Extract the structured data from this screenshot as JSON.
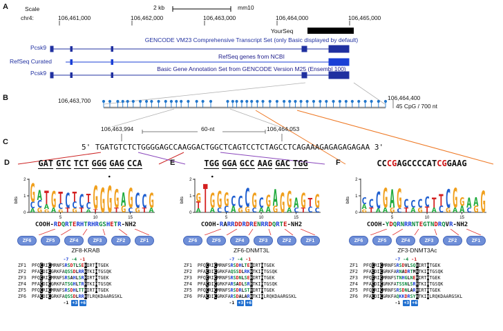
{
  "colors": {
    "track_blue": "#2030a0",
    "cpg_blue": "#2277cc",
    "map_red": "#cc2222",
    "map_purple": "#8844bb",
    "map_orange": "#ee7722"
  },
  "panelA": {
    "label": "A",
    "scale_label": "Scale",
    "scale_value": "2 kb",
    "genome": "mm10",
    "chrom": "chr4:",
    "coords": [
      "106,461,000",
      "106,462,000",
      "106,463,000",
      "106,464,000",
      "106,465,000"
    ],
    "tracks": {
      "yourseq": "YourSeq",
      "gencode_title": "GENCODE VM23 Comprehensive Transcript Set (only Basic displayed by default)",
      "gene_left": "Pcsk9",
      "refseq_left": "RefSeq Curated",
      "refseq_title": "RefSeq genes from NCBI",
      "m25_title": "Basic Gene Annotation Set from GENCODE Version M25 (Ensembl 100)",
      "gene_left2": "Pcsk9"
    }
  },
  "panelB": {
    "label": "B",
    "start": "106,463,700",
    "end": "106,464,400",
    "cpg_label": "45 CpG / 700 nt",
    "cpg_positions": [
      0.0,
      0.022,
      0.05,
      0.068,
      0.085,
      0.105,
      0.13,
      0.152,
      0.17,
      0.195,
      0.22,
      0.24,
      0.258,
      0.275,
      0.3,
      0.33,
      0.352,
      0.38,
      0.44,
      0.458,
      0.472,
      0.49,
      0.508,
      0.525,
      0.545,
      0.565,
      0.59,
      0.615,
      0.64,
      0.66,
      0.68,
      0.7,
      0.722,
      0.745,
      0.768,
      0.79,
      0.815,
      0.838,
      0.86,
      0.882,
      0.905,
      0.928,
      0.95,
      0.975,
      1.0
    ]
  },
  "zoom": {
    "start": "106,463,994",
    "mid": "60-nt",
    "end": "106,464,053"
  },
  "panelC": {
    "label": "C",
    "five": "5'",
    "seq": "TGATGTCTCTGGGGAGCCAAGGACTGGCTCAGTCCTCTAGCCTCAGAAAGAGAGAGAGAA",
    "three": "3'"
  },
  "panels": [
    {
      "label": "D",
      "target": "GATGTCTCTGGGGAGCCA",
      "underline_triplets": true,
      "red_positions": [],
      "logo": {
        "ylabel": "bits",
        "yticks": [
          0,
          1,
          2
        ],
        "xticks": [
          5,
          10,
          15
        ],
        "dots": [
          12
        ],
        "positions": [
          {
            "stack": [
              [
                "G",
                1.1
              ],
              [
                "C",
                0.4
              ],
              [
                "A",
                0.25
              ]
            ]
          },
          {
            "stack": [
              [
                "A",
                0.6
              ],
              [
                "C",
                0.45
              ],
              [
                "G",
                0.3
              ]
            ]
          },
          {
            "stack": [
              [
                "T",
                0.8
              ],
              [
                "A",
                0.3
              ],
              [
                "G",
                0.2
              ]
            ]
          },
          {
            "stack": [
              [
                "G",
                1.0
              ],
              [
                "A",
                0.3
              ]
            ]
          },
          {
            "stack": [
              [
                "T",
                0.7
              ],
              [
                "C",
                0.35
              ],
              [
                "G",
                0.2
              ]
            ]
          },
          {
            "stack": [
              [
                "C",
                0.9
              ],
              [
                "T",
                0.3
              ]
            ]
          },
          {
            "stack": [
              [
                "T",
                0.6
              ],
              [
                "C",
                0.4
              ],
              [
                "G",
                0.25
              ]
            ]
          },
          {
            "stack": [
              [
                "C",
                0.8
              ],
              [
                "T",
                0.3
              ]
            ]
          },
          {
            "stack": [
              [
                "T",
                0.5
              ],
              [
                "C",
                0.4
              ],
              [
                "A",
                0.2
              ]
            ]
          },
          {
            "stack": [
              [
                "G",
                1.4
              ],
              [
                "T",
                0.2
              ]
            ]
          },
          {
            "stack": [
              [
                "G",
                1.5
              ]
            ]
          },
          {
            "stack": [
              [
                "G",
                1.6
              ]
            ]
          },
          {
            "stack": [
              [
                "G",
                1.1
              ],
              [
                "T",
                0.3
              ]
            ]
          },
          {
            "stack": [
              [
                "A",
                0.8
              ],
              [
                "G",
                0.4
              ]
            ]
          },
          {
            "stack": [
              [
                "G",
                1.2
              ],
              [
                "C",
                0.3
              ]
            ]
          },
          {
            "stack": [
              [
                "C",
                0.9
              ],
              [
                "G",
                0.3
              ]
            ]
          },
          {
            "stack": [
              [
                "C",
                0.8
              ],
              [
                "T",
                0.3
              ]
            ]
          },
          {
            "stack": [
              [
                "G",
                0.9
              ],
              [
                "A",
                0.3
              ]
            ]
          }
        ]
      },
      "helix": {
        "cooh": "COOH-",
        "residues": "RDQRTERHTRHRGSHETR",
        "nh2": "-NH2"
      },
      "zf_ovals": [
        "ZF6",
        "ZF5",
        "ZF4",
        "ZF3",
        "ZF2",
        "ZF1"
      ],
      "construct": "ZF8-KRAB",
      "top_markers": [
        "-7",
        "-4",
        "-1"
      ],
      "bottom_markers": [
        "-1",
        "+3",
        "+6"
      ],
      "alignment": [
        [
          "ZF1",
          "PFQCRICMRNFSRSDTLSEHIRTHTGEK"
        ],
        [
          "ZF2",
          "PFACDICGRKFAQSSDLRRHTKIHTGSQK"
        ],
        [
          "ZF3",
          "PFQCRICMRNFSRSAHLSRHIRTHTGEK"
        ],
        [
          "ZF4",
          "PFACDICGRKFATSGHLTRHTKIHTGSQK"
        ],
        [
          "ZF5",
          "PFQCRICMRNFSRSDHLTTHIRTHTGEK"
        ],
        [
          "ZF6",
          "PFACDICGRKFAQSSDLRRHTLRQKDAARGSKL"
        ]
      ]
    },
    {
      "label": "E",
      "target": "TGGGGAGCCAAGGACTGG",
      "underline_triplets": true,
      "red_positions": [],
      "logo": {
        "ylabel": "bits",
        "yticks": [
          0,
          1,
          2
        ],
        "xticks": [
          5,
          10,
          15
        ],
        "dots": [
          3
        ],
        "positions": [
          {
            "stack": [
              [
                "G",
                0.5
              ],
              [
                "T",
                0.4
              ],
              [
                "A",
                0.25
              ]
            ]
          },
          {
            "stack": [
              [
                "T",
                1.7
              ]
            ]
          },
          {
            "stack": [
              [
                "G",
                0.9
              ],
              [
                "A",
                0.3
              ]
            ]
          },
          {
            "stack": [
              [
                "G",
                1.0
              ],
              [
                "C",
                0.3
              ]
            ]
          },
          {
            "stack": [
              [
                "G",
                0.8
              ],
              [
                "C",
                0.4
              ]
            ]
          },
          {
            "stack": [
              [
                "C",
                0.6
              ],
              [
                "A",
                0.4
              ]
            ]
          },
          {
            "stack": [
              [
                "C",
                0.7
              ],
              [
                "G",
                0.3
              ]
            ]
          },
          {
            "stack": [
              [
                "C",
                1.1
              ],
              [
                "G",
                0.35
              ]
            ]
          },
          {
            "stack": [
              [
                "G",
                0.9
              ],
              [
                "C",
                0.3
              ]
            ]
          },
          {
            "stack": [
              [
                "C",
                0.6
              ],
              [
                "A",
                0.3
              ]
            ]
          },
          {
            "stack": [
              [
                "G",
                0.7
              ],
              [
                "A",
                0.35
              ]
            ]
          },
          {
            "stack": [
              [
                "A",
                1.0
              ],
              [
                "G",
                0.4
              ]
            ]
          },
          {
            "stack": [
              [
                "G",
                1.2
              ]
            ]
          },
          {
            "stack": [
              [
                "G",
                1.0
              ],
              [
                "A",
                0.3
              ]
            ]
          },
          {
            "stack": [
              [
                "A",
                0.6
              ],
              [
                "C",
                0.3
              ]
            ]
          },
          {
            "stack": [
              [
                "G",
                0.9
              ],
              [
                "T",
                0.3
              ]
            ]
          },
          {
            "stack": [
              [
                "T",
                0.5
              ],
              [
                "C",
                0.35
              ]
            ]
          },
          {
            "stack": [
              [
                "G",
                0.8
              ],
              [
                "C",
                0.3
              ]
            ]
          }
        ]
      },
      "helix": {
        "cooh": "COOH-",
        "residues": "RARRDDRDRENRRDQRTE",
        "nh2": "-NH2"
      },
      "zf_ovals": [
        "ZF6",
        "ZF5",
        "ZF4",
        "ZF3",
        "ZF2",
        "ZF1"
      ],
      "construct": "ZF6-DNMT3L",
      "top_markers": [
        "-7",
        "-4",
        "-1"
      ],
      "bottom_markers": [
        "-1",
        "+3",
        "+6"
      ],
      "alignment": [
        [
          "ZF1",
          "PFQCRICMRNFSRSDHLTEHIRTHTGEK"
        ],
        [
          "ZF2",
          "PFACDICGRKFAQSSDLRKHTKIHTGSQK"
        ],
        [
          "ZF3",
          "PFQCRICMRNFSRSDNLSEHIRTHTGEK"
        ],
        [
          "ZF4",
          "PFACDICGRKFARSADLSRHTKIHTGSQK"
        ],
        [
          "ZF5",
          "PFQCRICMRNFSRSDRLSTHIRTHTGEK"
        ],
        [
          "ZF6",
          "PFACDICGRKFARSDALARHTKIHLRQKDAARGSKL"
        ]
      ]
    },
    {
      "label": "F",
      "target": "CCCGAGCCCCATCGGAAG",
      "underline_triplets": false,
      "red_positions": [
        2,
        3,
        12,
        13
      ],
      "logo": {
        "ylabel": "bits",
        "yticks": [
          0,
          1,
          2
        ],
        "xticks": [
          5,
          10,
          15
        ],
        "dots": [],
        "positions": [
          {
            "stack": [
              [
                "C",
                0.4
              ],
              [
                "A",
                0.3
              ],
              [
                "G",
                0.2
              ]
            ]
          },
          {
            "stack": [
              [
                "C",
                0.5
              ],
              [
                "T",
                0.3
              ]
            ]
          },
          {
            "stack": [
              [
                "C",
                1.0
              ],
              [
                "A",
                0.25
              ]
            ]
          },
          {
            "stack": [
              [
                "G",
                1.2
              ],
              [
                "A",
                0.3
              ]
            ]
          },
          {
            "stack": [
              [
                "A",
                1.1
              ],
              [
                "G",
                0.3
              ]
            ]
          },
          {
            "stack": [
              [
                "G",
                1.2
              ],
              [
                "C",
                0.25
              ]
            ]
          },
          {
            "stack": [
              [
                "C",
                0.5
              ],
              [
                "T",
                0.3
              ]
            ]
          },
          {
            "stack": [
              [
                "C",
                0.45
              ],
              [
                "A",
                0.3
              ]
            ]
          },
          {
            "stack": [
              [
                "C",
                0.5
              ],
              [
                "G",
                0.3
              ]
            ]
          },
          {
            "stack": [
              [
                "C",
                0.6
              ],
              [
                "T",
                0.35
              ]
            ]
          },
          {
            "stack": [
              [
                "T",
                0.6
              ],
              [
                "A",
                0.3
              ]
            ]
          },
          {
            "stack": [
              [
                "T",
                0.7
              ],
              [
                "C",
                0.4
              ]
            ]
          },
          {
            "stack": [
              [
                "C",
                1.1
              ],
              [
                "G",
                0.3
              ]
            ]
          },
          {
            "stack": [
              [
                "G",
                1.2
              ],
              [
                "A",
                0.3
              ]
            ]
          },
          {
            "stack": [
              [
                "G",
                0.5
              ],
              [
                "A",
                0.4
              ]
            ]
          },
          {
            "stack": [
              [
                "A",
                0.6
              ],
              [
                "C",
                0.3
              ]
            ]
          },
          {
            "stack": [
              [
                "A",
                0.5
              ],
              [
                "G",
                0.4
              ]
            ]
          },
          {
            "stack": [
              [
                "G",
                1.3
              ]
            ]
          }
        ]
      },
      "helix": {
        "cooh": "COOH-",
        "residues": "YDQRNRRNTEGTNDRQVR",
        "nh2": "-NH2"
      },
      "zf_ovals": [
        "ZF6",
        "ZF5",
        "ZF4",
        "ZF3",
        "ZF2",
        "ZF1"
      ],
      "construct": "ZF3-DNMT3Ac",
      "top_markers": [
        "-7",
        "-4",
        "-1"
      ],
      "bottom_markers": [
        "-1",
        "+3",
        "+6"
      ],
      "alignment": [
        [
          "ZF1",
          "PFQCRICMRNFSRSDVLSQHIRTHTGEK"
        ],
        [
          "ZF2",
          "PFACDICGRKFARNADRTMHTKIHTGSQK"
        ],
        [
          "ZF3",
          "PFQCRICMRNFSTNHGLNEHIRTHTGEK"
        ],
        [
          "ZF4",
          "PFACDICGRKFATSSNLSRHTKIHTGSQK"
        ],
        [
          "ZF5",
          "PFQCRICMRNFSRSDNLARHIRTHTGEK"
        ],
        [
          "ZF6",
          "PFACDICGRKFAQKKDRSYHTKIHLRQKDAARGSKL"
        ]
      ]
    }
  ]
}
